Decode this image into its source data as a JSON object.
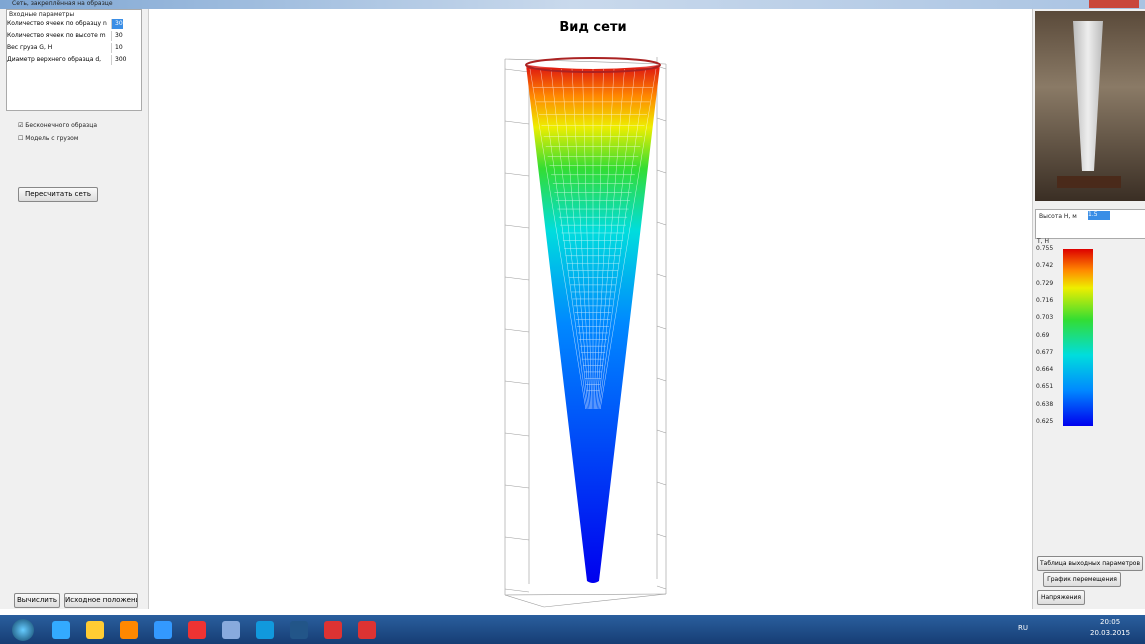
{
  "window": {
    "title": "Сеть, закреплённая на образце"
  },
  "left_panel": {
    "group_title": "Входные параметры",
    "params": [
      [
        "Количество ячеек по образцу n",
        "30"
      ],
      [
        "Количество ячеек по высоте m",
        "30"
      ],
      [
        "Вес груза G, H",
        "10"
      ],
      [
        "Диаметр верхнего образца d, мм",
        "300"
      ]
    ],
    "checkboxes": [
      "Бесконечного образца",
      "Модель с грузом"
    ],
    "recalc_button": "Пересчитать сеть",
    "bottom_buttons": [
      "Вычислить",
      "Исходное положение"
    ]
  },
  "plot": {
    "title": "Вид сети"
  },
  "right_panel": {
    "height_label": "Высота H, м",
    "height_value": "1.5",
    "colorbar_label": "T, H",
    "colorbar_ticks": [
      "0.755",
      "0.742",
      "0.729",
      "0.716",
      "0.703",
      "0.69",
      "0.677",
      "0.664",
      "0.651",
      "0.638",
      "0.625"
    ],
    "buttons": [
      "Таблица выходных параметров",
      "График перемещения",
      "Напряжения"
    ]
  },
  "taskbar": {
    "lang": "RU",
    "time": "20:05",
    "date": "20.03.2015"
  }
}
